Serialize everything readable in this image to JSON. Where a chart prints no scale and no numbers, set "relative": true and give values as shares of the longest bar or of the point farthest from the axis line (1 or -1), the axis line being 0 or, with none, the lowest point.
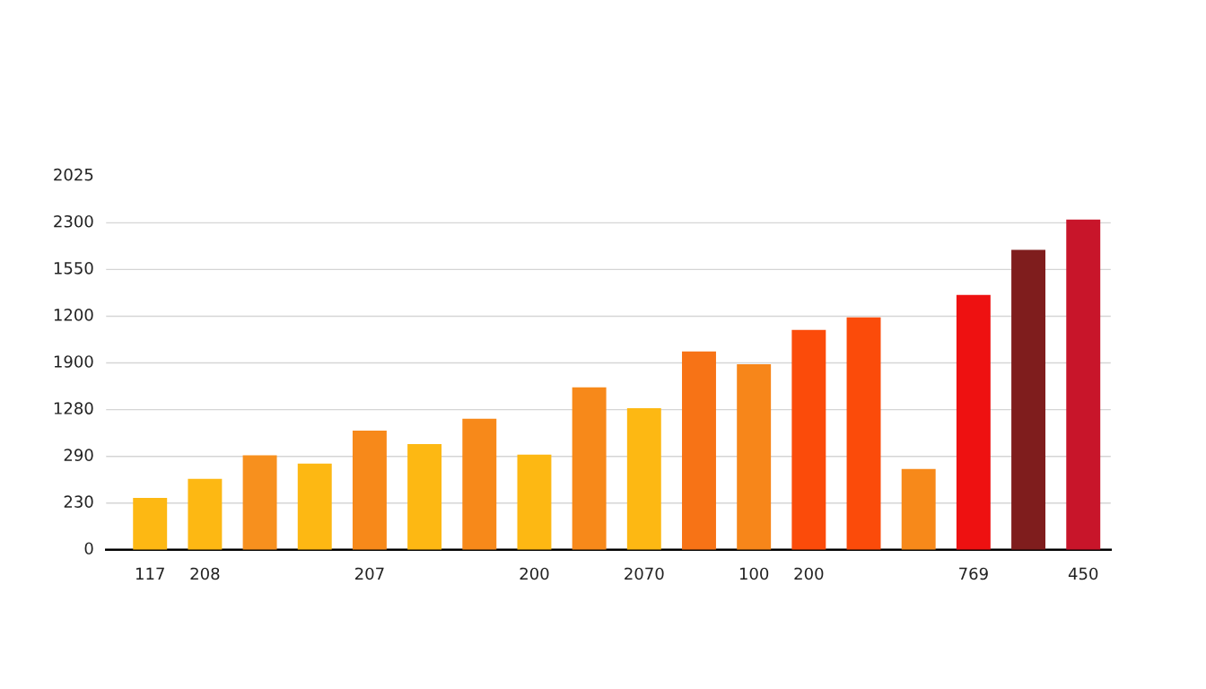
{
  "chart_data": {
    "type": "bar",
    "relative": true,
    "categories": [
      "117",
      "208",
      null,
      null,
      "207",
      null,
      null,
      "200",
      null,
      "2070",
      null,
      "100",
      "200",
      null,
      null,
      "769",
      null,
      "450"
    ],
    "values": [
      0.157,
      0.215,
      0.286,
      0.261,
      0.361,
      0.32,
      0.397,
      0.288,
      0.492,
      0.429,
      0.601,
      0.562,
      0.666,
      0.704,
      0.245,
      0.772,
      0.908,
      1
    ],
    "colors": [
      "#fdb813",
      "#fdb813",
      "#f7901e",
      "#fdb813",
      "#f7891a",
      "#fdb813",
      "#f7891a",
      "#fdb813",
      "#f7891a",
      "#fdb813",
      "#f77316",
      "#f7861a",
      "#fb4b0a",
      "#fb4b0a",
      "#f7891a",
      "#ee1111",
      "#7f1d1d",
      "#c8152a"
    ],
    "annotations": [
      "0",
      "230",
      "290",
      "1280",
      "1900",
      "1200",
      "1550",
      "2300",
      "2025"
    ],
    "grid": "y"
  }
}
